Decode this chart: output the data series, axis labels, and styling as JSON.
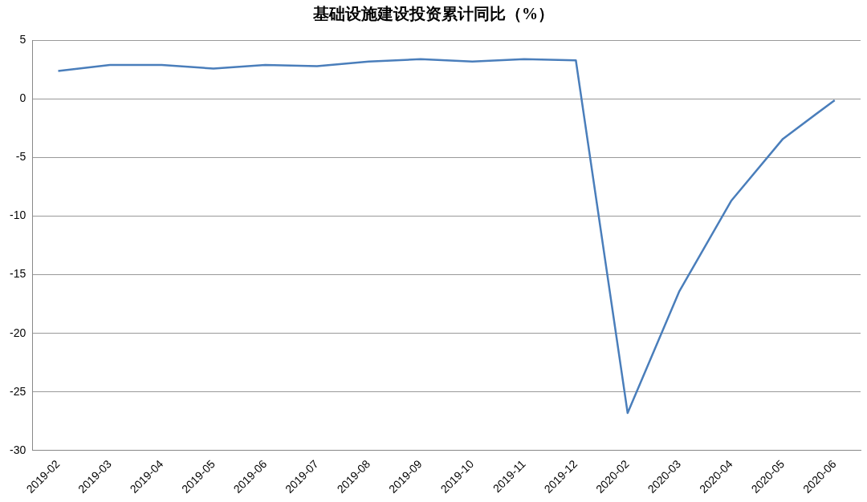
{
  "chart_data": {
    "type": "line",
    "title": "基础设施建设投资累计同比（%）",
    "categories": [
      "2019-02",
      "2019-03",
      "2019-04",
      "2019-05",
      "2019-06",
      "2019-07",
      "2019-08",
      "2019-09",
      "2019-10",
      "2019-11",
      "2019-12",
      "2020-02",
      "2020-03",
      "2020-04",
      "2020-05",
      "2020-06"
    ],
    "series": [
      {
        "color": "#4a7ebb",
        "values": [
          2.4,
          2.9,
          2.9,
          2.6,
          2.9,
          2.8,
          3.2,
          3.4,
          3.2,
          3.4,
          3.3,
          -26.8,
          -16.4,
          -8.7,
          -3.4,
          -0.1
        ]
      }
    ],
    "ylim": [
      -30,
      5
    ],
    "yticks": [
      -30,
      -25,
      -20,
      -15,
      -10,
      -5,
      0,
      5
    ],
    "grid": "y",
    "legend": false,
    "marker": "none",
    "line_style": "solid"
  }
}
